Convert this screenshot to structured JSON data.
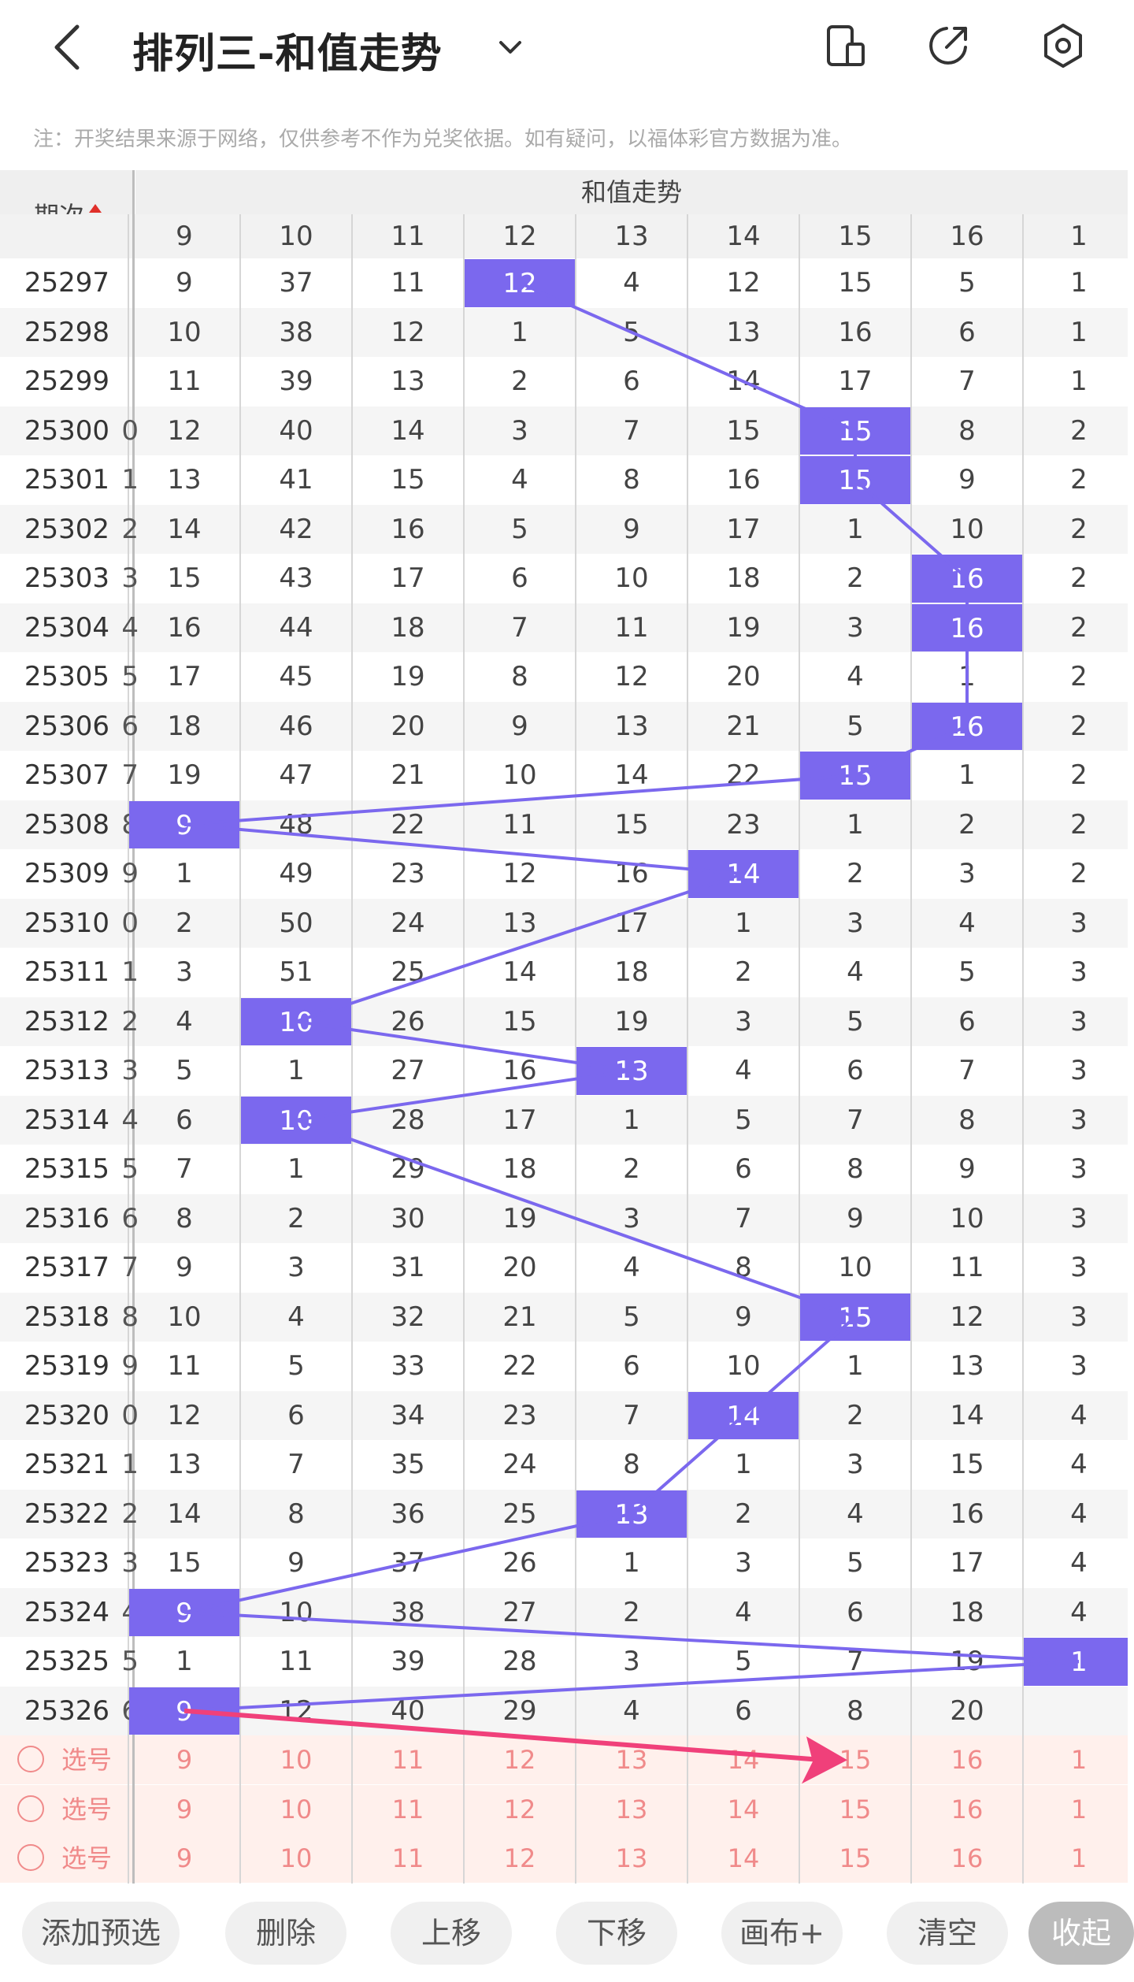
{
  "header": {
    "title": "排列三-和值走势"
  },
  "notice": "注：开奖结果来源于网络，仅供参考不作为兑奖依据。如有疑问，以福体彩官方数据为准。",
  "table": {
    "period_header": "期次",
    "group_header": "和值走势",
    "columns": [
      "9",
      "10",
      "11",
      "12",
      "13",
      "14",
      "15",
      "16",
      "1"
    ],
    "rows": [
      {
        "period": "25297",
        "cells": [
          "9",
          "37",
          "11",
          "12",
          "4",
          "12",
          "15",
          "5",
          "1"
        ],
        "hit": 3
      },
      {
        "period": "25298",
        "cells": [
          "10",
          "38",
          "12",
          "1",
          "5",
          "13",
          "16",
          "6",
          "1"
        ],
        "hit": -1
      },
      {
        "period": "25299",
        "cells": [
          "11",
          "39",
          "13",
          "2",
          "6",
          "14",
          "17",
          "7",
          "1"
        ],
        "hit": -1
      },
      {
        "period": "25300",
        "cells": [
          "12",
          "40",
          "14",
          "3",
          "7",
          "15",
          "15",
          "8",
          "2"
        ],
        "hit": 6
      },
      {
        "period": "25301",
        "cells": [
          "13",
          "41",
          "15",
          "4",
          "8",
          "16",
          "15",
          "9",
          "2"
        ],
        "hit": 6
      },
      {
        "period": "25302",
        "cells": [
          "14",
          "42",
          "16",
          "5",
          "9",
          "17",
          "1",
          "10",
          "2"
        ],
        "hit": -1
      },
      {
        "period": "25303",
        "cells": [
          "15",
          "43",
          "17",
          "6",
          "10",
          "18",
          "2",
          "16",
          "2"
        ],
        "hit": 7
      },
      {
        "period": "25304",
        "cells": [
          "16",
          "44",
          "18",
          "7",
          "11",
          "19",
          "3",
          "16",
          "2"
        ],
        "hit": 7
      },
      {
        "period": "25305",
        "cells": [
          "17",
          "45",
          "19",
          "8",
          "12",
          "20",
          "4",
          "1",
          "2"
        ],
        "hit": -1
      },
      {
        "period": "25306",
        "cells": [
          "18",
          "46",
          "20",
          "9",
          "13",
          "21",
          "5",
          "16",
          "2"
        ],
        "hit": 7
      },
      {
        "period": "25307",
        "cells": [
          "19",
          "47",
          "21",
          "10",
          "14",
          "22",
          "15",
          "1",
          "2"
        ],
        "hit": 6
      },
      {
        "period": "25308",
        "cells": [
          "9",
          "48",
          "22",
          "11",
          "15",
          "23",
          "1",
          "2",
          "2"
        ],
        "hit": 0
      },
      {
        "period": "25309",
        "cells": [
          "1",
          "49",
          "23",
          "12",
          "16",
          "14",
          "2",
          "3",
          "2"
        ],
        "hit": 5
      },
      {
        "period": "25310",
        "cells": [
          "2",
          "50",
          "24",
          "13",
          "17",
          "1",
          "3",
          "4",
          "3"
        ],
        "hit": -1
      },
      {
        "period": "25311",
        "cells": [
          "3",
          "51",
          "25",
          "14",
          "18",
          "2",
          "4",
          "5",
          "3"
        ],
        "hit": -1
      },
      {
        "period": "25312",
        "cells": [
          "4",
          "10",
          "26",
          "15",
          "19",
          "3",
          "5",
          "6",
          "3"
        ],
        "hit": 1
      },
      {
        "period": "25313",
        "cells": [
          "5",
          "1",
          "27",
          "16",
          "13",
          "4",
          "6",
          "7",
          "3"
        ],
        "hit": 4
      },
      {
        "period": "25314",
        "cells": [
          "6",
          "10",
          "28",
          "17",
          "1",
          "5",
          "7",
          "8",
          "3"
        ],
        "hit": 1
      },
      {
        "period": "25315",
        "cells": [
          "7",
          "1",
          "29",
          "18",
          "2",
          "6",
          "8",
          "9",
          "3"
        ],
        "hit": -1
      },
      {
        "period": "25316",
        "cells": [
          "8",
          "2",
          "30",
          "19",
          "3",
          "7",
          "9",
          "10",
          "3"
        ],
        "hit": -1
      },
      {
        "period": "25317",
        "cells": [
          "9",
          "3",
          "31",
          "20",
          "4",
          "8",
          "10",
          "11",
          "3"
        ],
        "hit": -1
      },
      {
        "period": "25318",
        "cells": [
          "10",
          "4",
          "32",
          "21",
          "5",
          "9",
          "15",
          "12",
          "3"
        ],
        "hit": 6
      },
      {
        "period": "25319",
        "cells": [
          "11",
          "5",
          "33",
          "22",
          "6",
          "10",
          "1",
          "13",
          "3"
        ],
        "hit": -1
      },
      {
        "period": "25320",
        "cells": [
          "12",
          "6",
          "34",
          "23",
          "7",
          "14",
          "2",
          "14",
          "4"
        ],
        "hit": 5
      },
      {
        "period": "25321",
        "cells": [
          "13",
          "7",
          "35",
          "24",
          "8",
          "1",
          "3",
          "15",
          "4"
        ],
        "hit": -1
      },
      {
        "period": "25322",
        "cells": [
          "14",
          "8",
          "36",
          "25",
          "13",
          "2",
          "4",
          "16",
          "4"
        ],
        "hit": 4
      },
      {
        "period": "25323",
        "cells": [
          "15",
          "9",
          "37",
          "26",
          "1",
          "3",
          "5",
          "17",
          "4"
        ],
        "hit": -1
      },
      {
        "period": "25324",
        "cells": [
          "9",
          "10",
          "38",
          "27",
          "2",
          "4",
          "6",
          "18",
          "4"
        ],
        "hit": 0
      },
      {
        "period": "25325",
        "cells": [
          "1",
          "11",
          "39",
          "28",
          "3",
          "5",
          "7",
          "19",
          "1"
        ],
        "hit": 8
      },
      {
        "period": "25326",
        "cells": [
          "9",
          "12",
          "40",
          "29",
          "4",
          "6",
          "8",
          "20",
          ""
        ],
        "hit": 0
      }
    ],
    "left_partial": [
      "",
      "",
      "",
      "0",
      "1",
      "2",
      "3",
      "4",
      "5",
      "6",
      "7",
      "8",
      "9",
      "0",
      "1",
      "2",
      "3",
      "4",
      "5",
      "6",
      "7",
      "8",
      "9",
      "0",
      "1",
      "2",
      "3",
      "4",
      "5",
      "6"
    ],
    "pick_rows": [
      {
        "label": "选号",
        "cells": [
          "9",
          "10",
          "11",
          "12",
          "13",
          "14",
          "15",
          "16",
          "1"
        ]
      },
      {
        "label": "选号",
        "cells": [
          "9",
          "10",
          "11",
          "12",
          "13",
          "14",
          "15",
          "16",
          "1"
        ]
      },
      {
        "label": "选号",
        "cells": [
          "9",
          "10",
          "11",
          "12",
          "13",
          "14",
          "15",
          "16",
          "1"
        ]
      }
    ]
  },
  "toolbar": {
    "buttons": [
      "添加预选",
      "删除",
      "上移",
      "下移",
      "画布+",
      "清空",
      "收起"
    ]
  },
  "colors": {
    "hit": "#7b68ee",
    "pick_bg": "#fff0ec",
    "pick_text": "#f08a8a",
    "arrow": "#f0407a"
  }
}
